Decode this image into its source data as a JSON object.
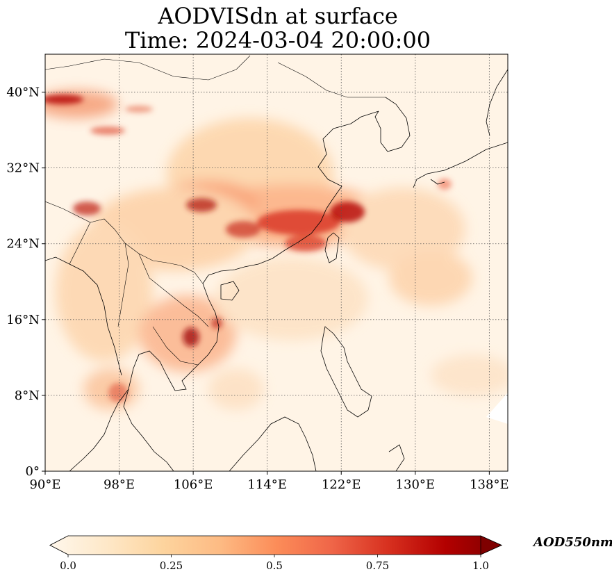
{
  "title": {
    "line1": "AODVISdn at surface",
    "line2": "Time: 2024-03-04 20:00:00"
  },
  "map": {
    "lon_range": [
      90,
      140
    ],
    "lat_range": [
      0,
      44
    ],
    "lon_ticks": [
      {
        "value": 90,
        "label": "90°E"
      },
      {
        "value": 98,
        "label": "98°E"
      },
      {
        "value": 106,
        "label": "106°E"
      },
      {
        "value": 114,
        "label": "114°E"
      },
      {
        "value": 122,
        "label": "122°E"
      },
      {
        "value": 130,
        "label": "130°E"
      },
      {
        "value": 138,
        "label": "138°E"
      }
    ],
    "lat_ticks": [
      {
        "value": 0,
        "label": "0°"
      },
      {
        "value": 8,
        "label": "8°N"
      },
      {
        "value": 16,
        "label": "16°N"
      },
      {
        "value": 24,
        "label": "24°N"
      },
      {
        "value": 32,
        "label": "32°N"
      },
      {
        "value": 40,
        "label": "40°N"
      }
    ],
    "gridlines": true,
    "colormap": "OrRd"
  },
  "colorbar": {
    "label": "AOD550nm",
    "range": [
      0.0,
      1.0
    ],
    "ticks": [
      {
        "value": 0.0,
        "label": "0.0"
      },
      {
        "value": 0.25,
        "label": "0.25"
      },
      {
        "value": 0.5,
        "label": "0.5"
      },
      {
        "value": 0.75,
        "label": "0.75"
      },
      {
        "value": 1.0,
        "label": "1.0"
      }
    ],
    "colors": [
      "#fff7ec",
      "#fee8c8",
      "#fdd49e",
      "#fdbb84",
      "#fc8d59",
      "#ef6548",
      "#d7301f",
      "#b30000",
      "#7f0000"
    ]
  }
}
